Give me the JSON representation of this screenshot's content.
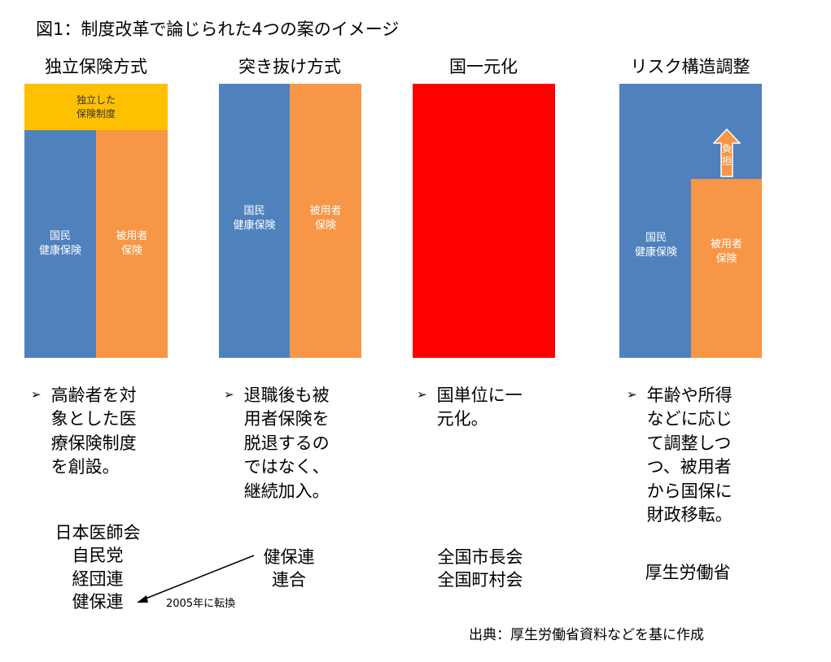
{
  "figure_title": "図1：制度改革で論じられた4つの案のイメージ",
  "colors": {
    "blue": "#4F81BD",
    "orange": "#F79646",
    "yellow": "#FFC000",
    "red": "#FF0000"
  },
  "plans": [
    {
      "title": "独立保険方式",
      "blocks": {
        "top": "独立した\n保険制度",
        "left": "国民\n健康保険",
        "right": "被用者\n保険"
      },
      "bullet": "高齢者を対\n象とした医\n療保険制度\nを創設。",
      "supporters": "日本医師会\n自民党\n経団連\n健保連"
    },
    {
      "title": "突き抜け方式",
      "blocks": {
        "left": "国民\n健康保険",
        "right": "被用者\n保険"
      },
      "bullet": "退職後も被\n用者保険を\n脱退するの\nではなく、\n継続加入。",
      "supporters": "健保連\n連合",
      "arrow_note": "2005年に転換"
    },
    {
      "title": "国一元化",
      "bullet": "国単位に一\n元化。",
      "supporters": "全国市長会\n全国町村会"
    },
    {
      "title": "リスク構造調整",
      "blocks": {
        "left": "国民\n健康保険",
        "right": "被用者\n保険",
        "arrow_label": "負\n担"
      },
      "bullet": "年齢や所得\nなどに応じ\nて調整しつ\nつ、被用者\nから国保に\n財政移転。",
      "supporters": "厚生労働省"
    }
  ],
  "source": "出典：厚生労働省資料などを基に作成"
}
